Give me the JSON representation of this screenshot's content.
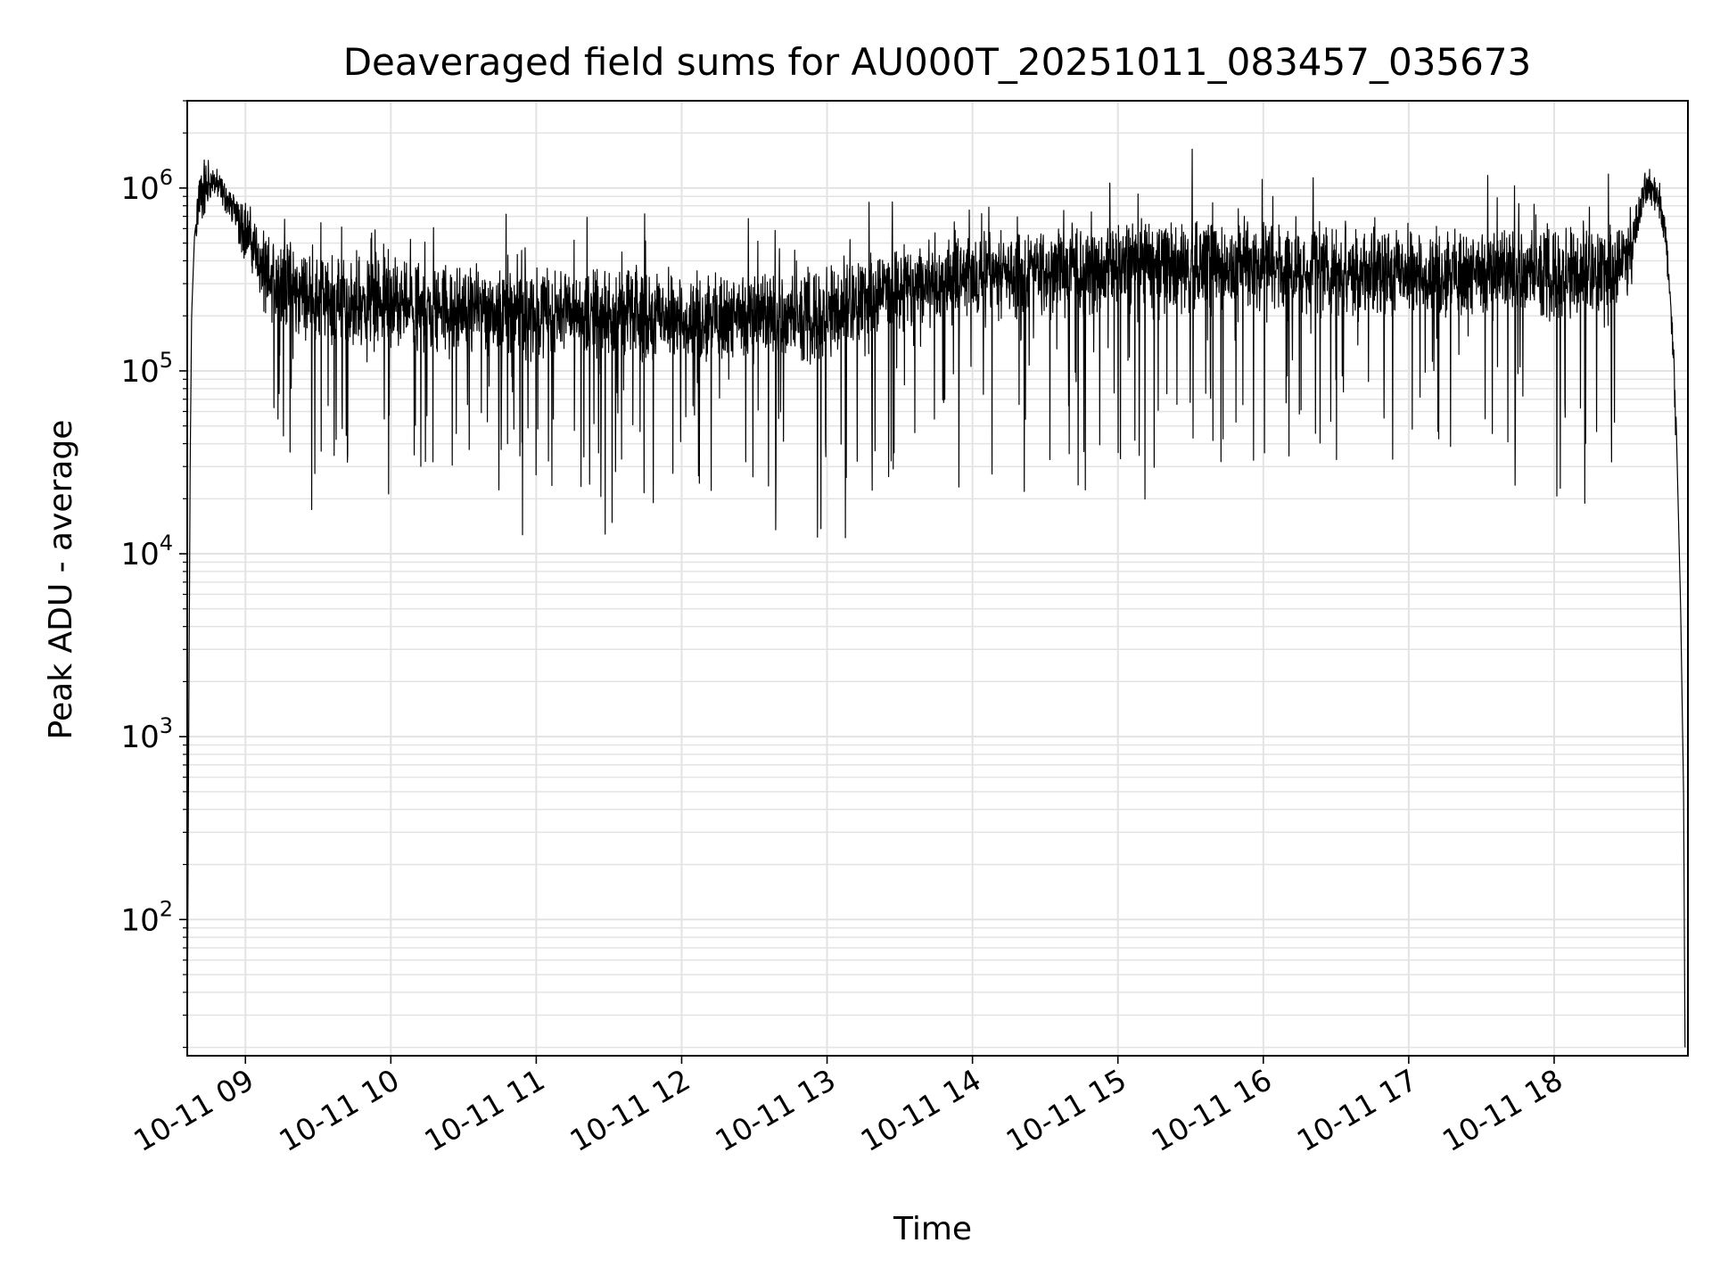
{
  "chart_data": {
    "type": "line",
    "title": "Deaveraged field sums for AU000T_20251011_083457_035673",
    "xlabel": "Time",
    "ylabel": "Peak ADU - average",
    "yscale": "log",
    "xlim_hours": [
      8.6,
      18.92
    ],
    "ylim": [
      18,
      3000000
    ],
    "grid": true,
    "line_color": "#000000",
    "grid_color": "#e3e3e3",
    "x_ticks": [
      {
        "hour": 9,
        "label": "10-11 09"
      },
      {
        "hour": 10,
        "label": "10-11 10"
      },
      {
        "hour": 11,
        "label": "10-11 11"
      },
      {
        "hour": 12,
        "label": "10-11 12"
      },
      {
        "hour": 13,
        "label": "10-11 13"
      },
      {
        "hour": 14,
        "label": "10-11 14"
      },
      {
        "hour": 15,
        "label": "10-11 15"
      },
      {
        "hour": 16,
        "label": "10-11 16"
      },
      {
        "hour": 17,
        "label": "10-11 17"
      },
      {
        "hour": 18,
        "label": "10-11 18"
      }
    ],
    "y_ticks": [
      {
        "value": 100,
        "base": "10",
        "exp": "2"
      },
      {
        "value": 1000,
        "base": "10",
        "exp": "3"
      },
      {
        "value": 10000,
        "base": "10",
        "exp": "4"
      },
      {
        "value": 100000,
        "base": "10",
        "exp": "5"
      },
      {
        "value": 1000000,
        "base": "10",
        "exp": "6"
      }
    ],
    "series": [
      {
        "name": "field sums",
        "time_hours": [
          8.6,
          8.61,
          8.62,
          8.63,
          8.65,
          8.68,
          8.72,
          8.78,
          8.84,
          8.9,
          8.96,
          9.02,
          9.08,
          9.12,
          9.2,
          9.4,
          9.7,
          10.0,
          10.4,
          10.8,
          11.2,
          11.6,
          12.0,
          12.4,
          12.8,
          13.1,
          13.3,
          13.6,
          14.0,
          14.4,
          14.8,
          15.2,
          15.6,
          16.0,
          16.4,
          16.8,
          17.2,
          17.6,
          18.0,
          18.3,
          18.5,
          18.58,
          18.63,
          18.68,
          18.72,
          18.76,
          18.8,
          18.84,
          18.87,
          18.89,
          18.9
        ],
        "values": [
          20,
          1000,
          30000,
          200000,
          550000,
          850000,
          1000000,
          1100000,
          950000,
          800000,
          700000,
          550000,
          450000,
          330000,
          300000,
          260000,
          240000,
          230000,
          220000,
          210000,
          210000,
          205000,
          200000,
          200000,
          190000,
          220000,
          260000,
          300000,
          330000,
          350000,
          360000,
          370000,
          370000,
          380000,
          360000,
          350000,
          350000,
          340000,
          340000,
          350000,
          400000,
          700000,
          1000000,
          1000000,
          900000,
          600000,
          250000,
          50000,
          5000,
          500,
          20
        ],
        "noise": "dense high-frequency fluctuation with downward spikes to about 1.5e4 around the baseline"
      }
    ]
  }
}
